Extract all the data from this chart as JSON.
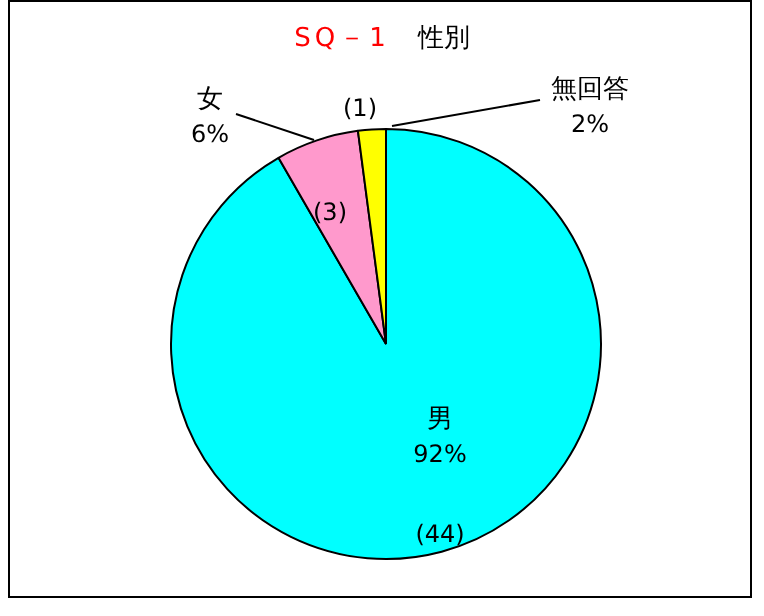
{
  "chart_data": {
    "type": "pie",
    "title": "SQ－1　性別",
    "categories": [
      "男",
      "女",
      "無回答"
    ],
    "values": [
      44,
      3,
      1
    ],
    "colors": [
      "#00ffff",
      "#ff99cc",
      "#ffff00"
    ],
    "value_labels": [
      "(44)",
      "(3)",
      "(1)"
    ],
    "annotations": [
      "92%",
      "6%",
      "2%"
    ],
    "legend": false
  }
}
